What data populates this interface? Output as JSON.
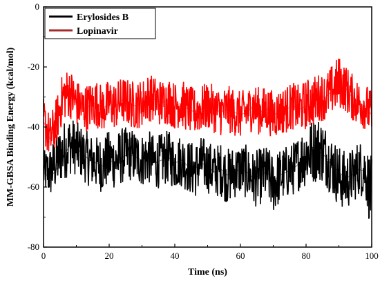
{
  "chart_data": {
    "type": "line",
    "title": "",
    "xlabel": "Time (ns)",
    "ylabel": "MM-GBSA Binding Energy (kcal/mol)",
    "xlim": [
      0,
      100
    ],
    "ylim": [
      -80,
      0
    ],
    "x_ticks": [
      0,
      20,
      40,
      60,
      80,
      100
    ],
    "y_ticks": [
      0,
      -20,
      -40,
      -60,
      -80
    ],
    "grid": false,
    "legend_position": "top-left",
    "series": [
      {
        "name": "Erylosides B",
        "color": "#000000",
        "band_color": "#000000",
        "x": [
          0,
          2,
          4,
          6,
          8,
          10,
          12,
          14,
          16,
          18,
          20,
          22,
          24,
          26,
          28,
          30,
          32,
          34,
          36,
          38,
          40,
          42,
          44,
          46,
          48,
          50,
          52,
          54,
          56,
          58,
          60,
          62,
          64,
          66,
          68,
          70,
          72,
          74,
          76,
          78,
          80,
          82,
          84,
          86,
          88,
          90,
          92,
          94,
          96,
          98,
          100
        ],
        "values": [
          -55,
          -57,
          -54,
          -50,
          -46,
          -47,
          -49,
          -51,
          -52,
          -53,
          -51,
          -52,
          -50,
          -49,
          -50,
          -51,
          -50,
          -52,
          -51,
          -50,
          -52,
          -51,
          -53,
          -54,
          -52,
          -53,
          -55,
          -54,
          -56,
          -55,
          -54,
          -55,
          -57,
          -56,
          -55,
          -58,
          -56,
          -55,
          -54,
          -52,
          -50,
          -49,
          -48,
          -50,
          -53,
          -55,
          -57,
          -56,
          -54,
          -55,
          -62
        ],
        "upper": [
          -48,
          -46,
          -42,
          -38,
          -36,
          -38,
          -40,
          -42,
          -43,
          -43,
          -41,
          -42,
          -40,
          -40,
          -41,
          -42,
          -41,
          -43,
          -42,
          -41,
          -43,
          -42,
          -44,
          -45,
          -43,
          -44,
          -46,
          -45,
          -47,
          -46,
          -45,
          -46,
          -48,
          -47,
          -46,
          -49,
          -47,
          -46,
          -45,
          -42,
          -38,
          -37,
          -36,
          -39,
          -43,
          -46,
          -48,
          -47,
          -44,
          -45,
          -50
        ],
        "lower": [
          -62,
          -64,
          -61,
          -58,
          -56,
          -56,
          -58,
          -60,
          -61,
          -62,
          -60,
          -61,
          -59,
          -58,
          -59,
          -60,
          -59,
          -61,
          -60,
          -59,
          -61,
          -60,
          -62,
          -64,
          -61,
          -62,
          -64,
          -63,
          -66,
          -64,
          -63,
          -64,
          -67,
          -66,
          -65,
          -69,
          -66,
          -64,
          -63,
          -61,
          -60,
          -59,
          -58,
          -60,
          -63,
          -67,
          -68,
          -66,
          -63,
          -64,
          -76
        ]
      },
      {
        "name": "Lopinavir",
        "color": "#a52a2a",
        "band_color": "#ff0000",
        "x": [
          0,
          2,
          4,
          6,
          8,
          10,
          12,
          14,
          16,
          18,
          20,
          22,
          24,
          26,
          28,
          30,
          32,
          34,
          36,
          38,
          40,
          42,
          44,
          46,
          48,
          50,
          52,
          54,
          56,
          58,
          60,
          62,
          64,
          66,
          68,
          70,
          72,
          74,
          76,
          78,
          80,
          82,
          84,
          86,
          88,
          90,
          92,
          94,
          96,
          98,
          100
        ],
        "values": [
          -38,
          -44,
          -38,
          -30,
          -29,
          -32,
          -34,
          -33,
          -32,
          -34,
          -32,
          -33,
          -31,
          -32,
          -33,
          -32,
          -30,
          -31,
          -32,
          -31,
          -33,
          -32,
          -34,
          -35,
          -34,
          -33,
          -34,
          -35,
          -34,
          -35,
          -36,
          -35,
          -33,
          -35,
          -34,
          -36,
          -35,
          -34,
          -33,
          -34,
          -33,
          -32,
          -30,
          -30,
          -28,
          -26,
          -27,
          -30,
          -32,
          -33,
          -36
        ],
        "upper": [
          -30,
          -36,
          -30,
          -21,
          -20,
          -24,
          -26,
          -25,
          -24,
          -26,
          -24,
          -25,
          -23,
          -24,
          -25,
          -24,
          -22,
          -23,
          -24,
          -23,
          -25,
          -24,
          -26,
          -27,
          -26,
          -25,
          -26,
          -27,
          -26,
          -27,
          -28,
          -27,
          -25,
          -27,
          -26,
          -28,
          -27,
          -26,
          -25,
          -26,
          -24,
          -23,
          -22,
          -22,
          -19,
          -16,
          -19,
          -22,
          -24,
          -25,
          -28
        ],
        "lower": [
          -45,
          -52,
          -46,
          -38,
          -37,
          -40,
          -42,
          -41,
          -40,
          -42,
          -40,
          -41,
          -39,
          -40,
          -41,
          -40,
          -38,
          -39,
          -40,
          -39,
          -41,
          -40,
          -42,
          -43,
          -42,
          -41,
          -42,
          -43,
          -42,
          -43,
          -44,
          -43,
          -41,
          -43,
          -42,
          -44,
          -43,
          -42,
          -41,
          -42,
          -41,
          -40,
          -38,
          -38,
          -36,
          -34,
          -35,
          -38,
          -40,
          -41,
          -44
        ]
      }
    ]
  }
}
